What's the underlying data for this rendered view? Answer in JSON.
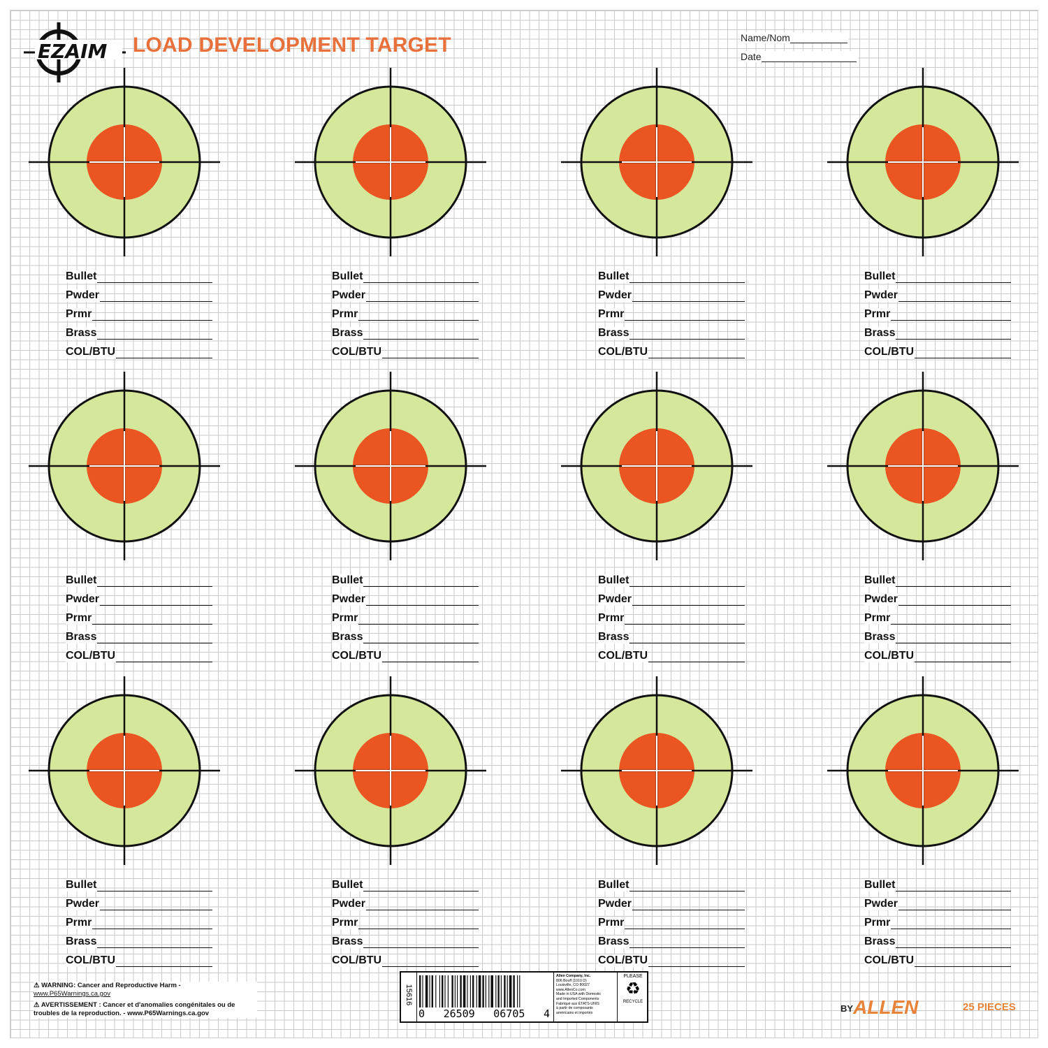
{
  "header": {
    "logo_text": "EZAIM",
    "title": "LOAD DEVELOPMENT TARGET",
    "name_label": "Name/Nom",
    "date_label": "Date"
  },
  "colors": {
    "title": "#e8703a",
    "outer_ring": "#d4e79b",
    "bullseye": "#ea5522",
    "brand": "#e8833a"
  },
  "targets": [
    {
      "bullet": "Bullet",
      "powder": "Pwder",
      "primer": "Prmr",
      "brass": "Brass",
      "col_btu": "COL/BTU"
    },
    {
      "bullet": "Bullet",
      "powder": "Pwder",
      "primer": "Prmr",
      "brass": "Brass",
      "col_btu": "COL/BTU"
    },
    {
      "bullet": "Bullet",
      "powder": "Pwder",
      "primer": "Prmr",
      "brass": "Brass",
      "col_btu": "COL/BTU"
    },
    {
      "bullet": "Bullet",
      "powder": "Pwder",
      "primer": "Prmr",
      "brass": "Brass",
      "col_btu": "COL/BTU"
    },
    {
      "bullet": "Bullet",
      "powder": "Pwder",
      "primer": "Prmr",
      "brass": "Brass",
      "col_btu": "COL/BTU"
    },
    {
      "bullet": "Bullet",
      "powder": "Pwder",
      "primer": "Prmr",
      "brass": "Brass",
      "col_btu": "COL/BTU"
    },
    {
      "bullet": "Bullet",
      "powder": "Pwder",
      "primer": "Prmr",
      "brass": "Brass",
      "col_btu": "COL/BTU"
    },
    {
      "bullet": "Bullet",
      "powder": "Pwder",
      "primer": "Prmr",
      "brass": "Brass",
      "col_btu": "COL/BTU"
    },
    {
      "bullet": "Bullet",
      "powder": "Pwder",
      "primer": "Prmr",
      "brass": "Brass",
      "col_btu": "COL/BTU"
    },
    {
      "bullet": "Bullet",
      "powder": "Pwder",
      "primer": "Prmr",
      "brass": "Brass",
      "col_btu": "COL/BTU"
    },
    {
      "bullet": "Bullet",
      "powder": "Pwder",
      "primer": "Prmr",
      "brass": "Brass",
      "col_btu": "COL/BTU"
    },
    {
      "bullet": "Bullet",
      "powder": "Pwder",
      "primer": "Prmr",
      "brass": "Brass",
      "col_btu": "COL/BTU"
    }
  ],
  "footer": {
    "warning_1": "WARNING: Cancer and Reproductive Harm -",
    "warning_2": "www.P65Warnings.ca.gov",
    "warning_3": "AVERTISSEMENT : Cancer et d'anomalies congénitales ou de",
    "warning_4": "troubles de la reproduction. - www.P65Warnings.ca.gov",
    "product_code": "15616",
    "barcode_digits_left": "0",
    "barcode_digits_mid_1": "26509",
    "barcode_digits_mid_2": "06705",
    "barcode_digits_right": "4",
    "company_lines": [
      "Allen Company, Inc.",
      "806 Bouff (1010 D)",
      "Louisville, CO 80027",
      "www.AllenCo.com",
      "Made in USA with Domestic",
      "and Imported Components",
      "Fabriqué aux ÉTATS-UNIS",
      "à partir de composants",
      "américains et importés"
    ],
    "recycle_top": "PLEASE",
    "recycle_bottom": "RECYCLE",
    "brand_prefix": "BY",
    "brand": "ALLEN",
    "pieces": "25 PIECES"
  }
}
